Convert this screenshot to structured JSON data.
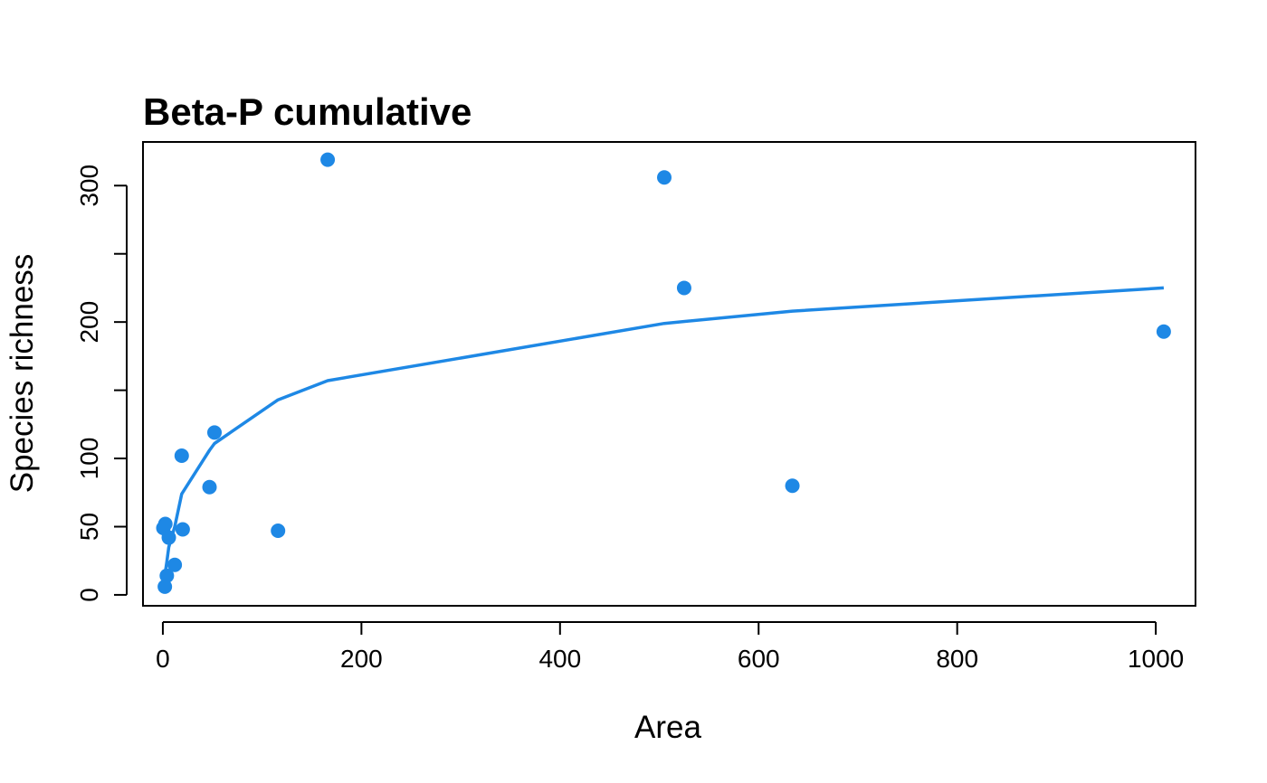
{
  "chart_data": {
    "type": "scatter",
    "title": "Beta-P cumulative",
    "xlabel": "Area",
    "ylabel": "Species richness",
    "xlim": [
      -20,
      1040
    ],
    "ylim": [
      -8,
      332
    ],
    "x_ticks": [
      0,
      200,
      400,
      600,
      800,
      1000
    ],
    "x_tick_labels": [
      "0",
      "200",
      "400",
      "600",
      "800",
      "1000"
    ],
    "y_ticks": [
      0,
      50,
      100,
      150,
      200,
      250,
      300
    ],
    "y_tick_labels": [
      "0",
      "50",
      "100",
      "",
      "200",
      "",
      "300"
    ],
    "grid": false,
    "color": "#1E88E5",
    "series": [
      {
        "type": "scatter",
        "points": [
          {
            "x": 0.5,
            "y": 49
          },
          {
            "x": 2,
            "y": 6
          },
          {
            "x": 2.5,
            "y": 52
          },
          {
            "x": 4,
            "y": 14
          },
          {
            "x": 6,
            "y": 42
          },
          {
            "x": 12,
            "y": 22
          },
          {
            "x": 19,
            "y": 102
          },
          {
            "x": 20,
            "y": 48
          },
          {
            "x": 47,
            "y": 79
          },
          {
            "x": 52,
            "y": 119
          },
          {
            "x": 116,
            "y": 47
          },
          {
            "x": 166,
            "y": 319
          },
          {
            "x": 505,
            "y": 306
          },
          {
            "x": 525,
            "y": 225
          },
          {
            "x": 634,
            "y": 80
          },
          {
            "x": 1008,
            "y": 193
          }
        ]
      },
      {
        "type": "line",
        "points": [
          {
            "x": 0.5,
            "y": 6
          },
          {
            "x": 2,
            "y": 14
          },
          {
            "x": 4,
            "y": 24
          },
          {
            "x": 6,
            "y": 35
          },
          {
            "x": 12,
            "y": 50
          },
          {
            "x": 19,
            "y": 74
          },
          {
            "x": 47,
            "y": 106
          },
          {
            "x": 52,
            "y": 111
          },
          {
            "x": 116,
            "y": 143
          },
          {
            "x": 166,
            "y": 157
          },
          {
            "x": 505,
            "y": 199
          },
          {
            "x": 634,
            "y": 208
          },
          {
            "x": 1008,
            "y": 225
          }
        ]
      }
    ]
  }
}
